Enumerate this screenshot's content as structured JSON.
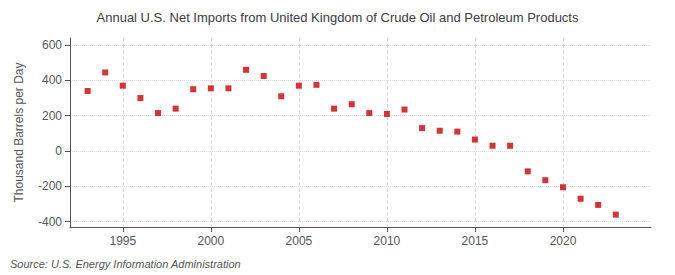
{
  "chart_data": {
    "type": "scatter",
    "title": "Annual U.S. Net Imports from United Kingdom of Crude Oil and Petroleum Products",
    "ylabel": "Thousand Barrels per Day",
    "source": "Source: U.S. Energy Information Administration",
    "x": [
      1993,
      1994,
      1995,
      1996,
      1997,
      1998,
      1999,
      2000,
      2001,
      2002,
      2003,
      2004,
      2005,
      2006,
      2007,
      2008,
      2009,
      2010,
      2011,
      2012,
      2013,
      2014,
      2015,
      2016,
      2017,
      2018,
      2019,
      2020,
      2021,
      2022,
      2023
    ],
    "values": [
      340,
      445,
      370,
      300,
      215,
      240,
      350,
      355,
      355,
      460,
      425,
      310,
      370,
      375,
      240,
      265,
      215,
      210,
      235,
      130,
      115,
      110,
      65,
      30,
      30,
      -115,
      -165,
      -205,
      -270,
      -305,
      -360
    ],
    "color": "#cc0000",
    "marker": "square",
    "xlim": [
      1992,
      2025
    ],
    "xticks": [
      1995,
      2000,
      2005,
      2010,
      2015,
      2020
    ],
    "ylim": [
      -430,
      640
    ],
    "yticks": [
      -400,
      -200,
      0,
      200,
      400,
      600
    ],
    "grid": true
  }
}
